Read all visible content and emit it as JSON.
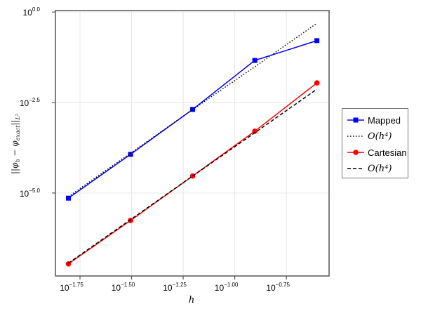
{
  "chart_data": {
    "type": "line",
    "xscale": "log10",
    "yscale": "log10",
    "xlabel": "h",
    "ylabel": "||φ_h − φ_exact||_L²",
    "xlim": [
      0.01352,
      0.2864
    ],
    "ylim": [
      5.1e-08,
      1.1
    ],
    "xticks": [
      {
        "exp": "−1.75",
        "value": -1.75
      },
      {
        "exp": "−1.50",
        "value": -1.5
      },
      {
        "exp": "−1.25",
        "value": -1.25
      },
      {
        "exp": "−1.00",
        "value": -1.0
      },
      {
        "exp": "−0.75",
        "value": -0.75
      }
    ],
    "yticks": [
      {
        "exp": "0.0",
        "value": 0.0
      },
      {
        "exp": "−2.5",
        "value": -2.5
      },
      {
        "exp": "−5.0",
        "value": -5.0
      }
    ],
    "grid": true,
    "legend_placement": "right-outside",
    "x": [
      0.015625,
      0.03125,
      0.0625,
      0.125,
      0.25
    ],
    "series": [
      {
        "name": "Mapped",
        "color": "#0000ff",
        "marker": "square",
        "style": "solid",
        "values": [
          7.2e-06,
          0.000117,
          0.00204,
          0.046,
          0.162
        ]
      },
      {
        "name": "O(h⁴)",
        "color": "#000000",
        "marker": "none",
        "style": "dotted",
        "values": [
          7.9e-06,
          0.000126,
          0.00202,
          0.0307,
          0.49
        ]
      },
      {
        "name": "Cartesian",
        "color": "#ff0000",
        "marker": "circle",
        "style": "solid",
        "values": [
          1.1e-07,
          1.74e-06,
          2.95e-05,
          0.00051,
          0.011
        ]
      },
      {
        "name": "O(h⁴)",
        "color": "#000000",
        "marker": "none",
        "style": "dashed",
        "values": [
          1.15e-07,
          1.84e-06,
          2.94e-05,
          0.00046,
          0.0074
        ]
      }
    ]
  }
}
